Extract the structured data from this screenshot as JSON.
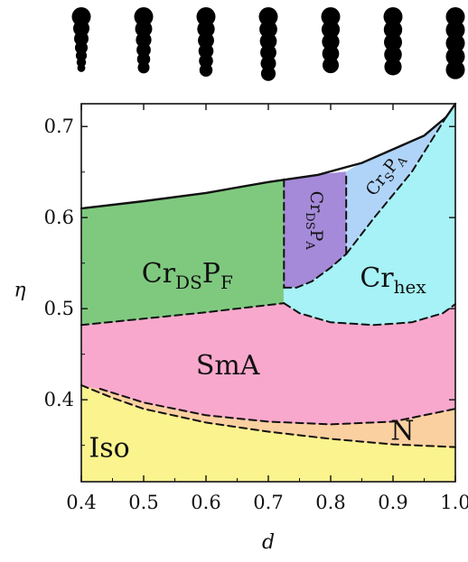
{
  "chart_data": {
    "type": "area",
    "title": "",
    "xlabel": "d",
    "ylabel": "η",
    "xlim": [
      0.4,
      1.0
    ],
    "ylim": [
      0.31,
      0.725
    ],
    "x_ticks": [
      "0.4",
      "0.5",
      "0.6",
      "0.7",
      "0.8",
      "0.9",
      "1.0"
    ],
    "y_ticks": [
      "0.4",
      "0.5",
      "0.6",
      "0.7"
    ],
    "grid": false,
    "colors": {
      "Iso": "#fbf38e",
      "N": "#fbd0a0",
      "SmA": "#f8a8cc",
      "CrDSPF": "#7fc97f",
      "CrDSPA": "#a48ad8",
      "CrSPA": "#b0d4f8",
      "Crhex": "#a6f2f6"
    },
    "phase_labels": [
      {
        "id": "iso",
        "main": "Iso",
        "sub": "",
        "main2": "",
        "sub2": "",
        "x": 0.445,
        "y": 0.345
      },
      {
        "id": "n",
        "main": "N",
        "sub": "",
        "main2": "",
        "sub2": "",
        "x": 0.915,
        "y": 0.364
      },
      {
        "id": "sma",
        "main": "SmA",
        "sub": "",
        "main2": "",
        "sub2": "",
        "x": 0.635,
        "y": 0.436
      },
      {
        "id": "crdspf",
        "main": "Cr",
        "sub": "DS",
        "main2": "P",
        "sub2": "F",
        "x": 0.57,
        "y": 0.537
      },
      {
        "id": "crhex",
        "main": "Cr",
        "sub": "hex",
        "main2": "",
        "sub2": "",
        "x": 0.9,
        "y": 0.532
      },
      {
        "id": "crdspa",
        "main": "Cr",
        "sub": "DS",
        "main2": "P",
        "sub2": "A",
        "x": 0.775,
        "y": 0.597,
        "rotate": 90
      },
      {
        "id": "crspa",
        "main": "Cr",
        "sub": "S",
        "main2": "P",
        "sub2": "A",
        "x": 0.888,
        "y": 0.647,
        "rotate": -52
      }
    ],
    "regions": [
      {
        "name": "Iso",
        "points": [
          [
            0.4,
            0.416
          ],
          [
            0.45,
            0.402
          ],
          [
            0.5,
            0.39
          ],
          [
            0.6,
            0.375
          ],
          [
            0.7,
            0.365
          ],
          [
            0.8,
            0.357
          ],
          [
            0.9,
            0.351
          ],
          [
            1.0,
            0.348
          ],
          [
            1.0,
            0.311
          ],
          [
            0.4,
            0.311
          ]
        ]
      },
      {
        "name": "N",
        "points": [
          [
            0.4,
            0.416
          ],
          [
            0.45,
            0.402
          ],
          [
            0.5,
            0.39
          ],
          [
            0.6,
            0.375
          ],
          [
            0.7,
            0.365
          ],
          [
            0.8,
            0.357
          ],
          [
            0.9,
            0.351
          ],
          [
            1.0,
            0.348
          ],
          [
            1.0,
            0.39
          ],
          [
            0.9,
            0.376
          ],
          [
            0.8,
            0.373
          ],
          [
            0.7,
            0.376
          ],
          [
            0.6,
            0.383
          ],
          [
            0.5,
            0.397
          ],
          [
            0.43,
            0.412
          ]
        ]
      },
      {
        "name": "SmA",
        "points": [
          [
            0.4,
            0.416
          ],
          [
            0.43,
            0.412
          ],
          [
            0.5,
            0.397
          ],
          [
            0.6,
            0.383
          ],
          [
            0.7,
            0.376
          ],
          [
            0.8,
            0.373
          ],
          [
            0.9,
            0.376
          ],
          [
            1.0,
            0.39
          ],
          [
            1.0,
            0.505
          ],
          [
            0.98,
            0.495
          ],
          [
            0.93,
            0.485
          ],
          [
            0.87,
            0.482
          ],
          [
            0.8,
            0.485
          ],
          [
            0.75,
            0.495
          ],
          [
            0.725,
            0.506
          ],
          [
            0.6,
            0.496
          ],
          [
            0.5,
            0.489
          ],
          [
            0.4,
            0.482
          ]
        ]
      },
      {
        "name": "CrDSPF",
        "points": [
          [
            0.4,
            0.482
          ],
          [
            0.5,
            0.489
          ],
          [
            0.6,
            0.496
          ],
          [
            0.725,
            0.506
          ],
          [
            0.725,
            0.642
          ],
          [
            0.6,
            0.627
          ],
          [
            0.5,
            0.618
          ],
          [
            0.4,
            0.61
          ]
        ]
      },
      {
        "name": "CrDSPA",
        "points": [
          [
            0.725,
            0.523
          ],
          [
            0.745,
            0.523
          ],
          [
            0.77,
            0.53
          ],
          [
            0.8,
            0.545
          ],
          [
            0.825,
            0.56
          ],
          [
            0.825,
            0.65
          ],
          [
            0.78,
            0.647
          ],
          [
            0.725,
            0.642
          ]
        ]
      },
      {
        "name": "CrSPA",
        "points": [
          [
            0.825,
            0.56
          ],
          [
            0.87,
            0.6
          ],
          [
            0.93,
            0.65
          ],
          [
            0.985,
            0.71
          ],
          [
            0.95,
            0.69
          ],
          [
            0.9,
            0.675
          ],
          [
            0.85,
            0.66
          ],
          [
            0.825,
            0.65
          ]
        ]
      },
      {
        "name": "Crhex",
        "points": [
          [
            0.725,
            0.506
          ],
          [
            0.75,
            0.495
          ],
          [
            0.8,
            0.485
          ],
          [
            0.87,
            0.482
          ],
          [
            0.93,
            0.485
          ],
          [
            0.98,
            0.495
          ],
          [
            1.0,
            0.505
          ],
          [
            1.0,
            0.725
          ],
          [
            0.985,
            0.71
          ],
          [
            0.93,
            0.65
          ],
          [
            0.87,
            0.6
          ],
          [
            0.825,
            0.56
          ],
          [
            0.8,
            0.545
          ],
          [
            0.77,
            0.53
          ],
          [
            0.745,
            0.523
          ],
          [
            0.725,
            0.523
          ]
        ]
      }
    ],
    "boundaries": [
      {
        "name": "top",
        "style": "solid",
        "points": [
          [
            0.4,
            0.61
          ],
          [
            0.5,
            0.618
          ],
          [
            0.6,
            0.627
          ],
          [
            0.7,
            0.639
          ],
          [
            0.78,
            0.647
          ],
          [
            0.85,
            0.66
          ],
          [
            0.9,
            0.675
          ],
          [
            0.95,
            0.69
          ],
          [
            0.985,
            0.71
          ],
          [
            1.0,
            0.725
          ]
        ]
      },
      {
        "name": "Iso-N",
        "style": "dashed",
        "points": [
          [
            0.4,
            0.416
          ],
          [
            0.45,
            0.402
          ],
          [
            0.5,
            0.39
          ],
          [
            0.6,
            0.375
          ],
          [
            0.7,
            0.365
          ],
          [
            0.8,
            0.357
          ],
          [
            0.9,
            0.351
          ],
          [
            1.0,
            0.348
          ]
        ]
      },
      {
        "name": "N-SmA",
        "style": "dashed",
        "points": [
          [
            0.43,
            0.412
          ],
          [
            0.5,
            0.397
          ],
          [
            0.6,
            0.383
          ],
          [
            0.7,
            0.376
          ],
          [
            0.8,
            0.373
          ],
          [
            0.9,
            0.376
          ],
          [
            1.0,
            0.39
          ]
        ]
      },
      {
        "name": "SmA-CrDSPF",
        "style": "dashed",
        "points": [
          [
            0.4,
            0.482
          ],
          [
            0.5,
            0.489
          ],
          [
            0.6,
            0.496
          ],
          [
            0.725,
            0.506
          ]
        ]
      },
      {
        "name": "SmA-Crhex",
        "style": "dashed",
        "points": [
          [
            0.725,
            0.506
          ],
          [
            0.75,
            0.495
          ],
          [
            0.8,
            0.485
          ],
          [
            0.87,
            0.482
          ],
          [
            0.93,
            0.485
          ],
          [
            0.98,
            0.495
          ],
          [
            1.0,
            0.505
          ]
        ]
      },
      {
        "name": "CrDSPF-CrDSPA",
        "style": "dashed",
        "points": [
          [
            0.725,
            0.642
          ],
          [
            0.725,
            0.523
          ]
        ]
      },
      {
        "name": "CrDSPA-Crhex",
        "style": "dashed",
        "points": [
          [
            0.725,
            0.523
          ],
          [
            0.745,
            0.523
          ],
          [
            0.77,
            0.53
          ],
          [
            0.8,
            0.545
          ],
          [
            0.825,
            0.56
          ]
        ]
      },
      {
        "name": "CrDSPA-CrSPA",
        "style": "dashed",
        "points": [
          [
            0.825,
            0.56
          ],
          [
            0.825,
            0.65
          ]
        ]
      },
      {
        "name": "CrSPA-Crhex",
        "style": "dashed",
        "points": [
          [
            0.825,
            0.56
          ],
          [
            0.87,
            0.6
          ],
          [
            0.93,
            0.65
          ],
          [
            0.985,
            0.71
          ]
        ]
      }
    ],
    "molecule_columns": [
      {
        "d": 0.4,
        "spheres": [
          1,
          0.86,
          0.76,
          0.67,
          0.58,
          0.5,
          0.42
        ]
      },
      {
        "d": 0.5,
        "spheres": [
          1,
          0.9,
          0.82,
          0.75,
          0.69,
          0.62
        ]
      },
      {
        "d": 0.6,
        "spheres": [
          1,
          0.92,
          0.85,
          0.79,
          0.74,
          0.69
        ]
      },
      {
        "d": 0.7,
        "spheres": [
          1,
          0.94,
          0.89,
          0.85,
          0.81,
          0.77
        ]
      },
      {
        "d": 0.8,
        "spheres": [
          1,
          0.96,
          0.92,
          0.89,
          0.86
        ]
      },
      {
        "d": 0.9,
        "spheres": [
          1,
          0.97,
          0.95,
          0.93,
          0.91
        ]
      },
      {
        "d": 1.0,
        "spheres": [
          1,
          1,
          1,
          1,
          1
        ]
      }
    ]
  }
}
